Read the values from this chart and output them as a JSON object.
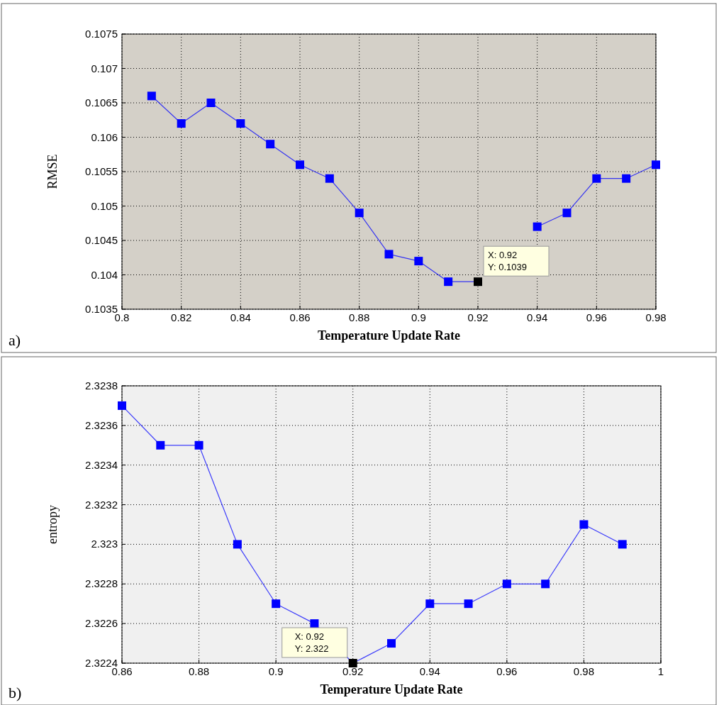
{
  "chart_data": [
    {
      "type": "line",
      "xlabel": "Temperature Update Rate",
      "ylabel": "RMSE",
      "x": [
        0.81,
        0.82,
        0.83,
        0.84,
        0.85,
        0.86,
        0.87,
        0.88,
        0.89,
        0.9,
        0.91,
        0.92,
        0.93,
        0.94,
        0.95,
        0.96,
        0.97,
        0.98
      ],
      "series": [
        {
          "color": "#0000ff",
          "colors": [
            "#0000ff",
            "#0000ff",
            "#0000ff",
            "#0000ff",
            "#0000ff",
            "#0000ff",
            "#0000ff",
            "#0000ff",
            "#0000ff",
            "#0000ff",
            "#0000ff",
            "#000000",
            null,
            "#0000ff",
            "#0000ff",
            "#0000ff",
            "#0000ff",
            "#0000ff"
          ],
          "values": [
            0.1066,
            0.1062,
            0.1065,
            0.1062,
            0.1059,
            0.1056,
            0.1054,
            0.1049,
            0.1043,
            0.1042,
            0.1039,
            0.1039,
            null,
            0.1047,
            0.1049,
            0.1054,
            0.1054,
            0.1056
          ]
        }
      ],
      "xlim": [
        0.8,
        0.98
      ],
      "xticks": [
        0.8,
        0.82,
        0.84,
        0.86,
        0.88,
        0.9,
        0.92,
        0.94,
        0.96,
        0.98
      ],
      "ylim": [
        0.1035,
        0.1075
      ],
      "yticks": [
        0.1035,
        0.104,
        0.1045,
        0.105,
        0.1055,
        0.106,
        0.1065,
        0.107,
        0.1075
      ],
      "grid": true,
      "marker": "square",
      "line_style": "solid",
      "annotations": [
        "a)",
        {
          "text": "X: 0.92\nY: 0.1039",
          "x": 0.92,
          "y": 0.1039
        }
      ]
    },
    {
      "type": "line",
      "xlabel": "Temperature Update Rate",
      "ylabel": "entropy",
      "x": [
        0.86,
        0.87,
        0.88,
        0.89,
        0.9,
        0.91,
        0.92,
        0.93,
        0.94,
        0.95,
        0.96,
        0.97,
        0.98,
        0.99
      ],
      "series": [
        {
          "color": "#0000ff",
          "colors": [
            "#0000ff",
            "#0000ff",
            "#0000ff",
            "#0000ff",
            "#0000ff",
            "#0000ff",
            "#000000",
            "#0000ff",
            "#0000ff",
            "#0000ff",
            "#0000ff",
            "#0000ff",
            "#0000ff",
            "#0000ff"
          ],
          "values": [
            2.3237,
            2.3235,
            2.3235,
            2.323,
            2.3227,
            2.3226,
            2.3224,
            2.3225,
            2.3227,
            2.3227,
            2.3228,
            2.3228,
            2.3231,
            2.323
          ]
        }
      ],
      "xlim": [
        0.86,
        1
      ],
      "xticks": [
        0.86,
        0.88,
        0.9,
        0.92,
        0.94,
        0.96,
        0.98,
        1
      ],
      "ylim": [
        2.3224,
        2.3238
      ],
      "yticks": [
        2.3224,
        2.3226,
        2.3228,
        2.323,
        2.3232,
        2.3234,
        2.3236,
        2.3238
      ],
      "grid": true,
      "marker": "square",
      "line_style": "solid",
      "annotations": [
        "b)",
        {
          "text": "X: 0.92\nY: 2.322",
          "x": 0.92,
          "y": 2.3224
        }
      ]
    }
  ]
}
